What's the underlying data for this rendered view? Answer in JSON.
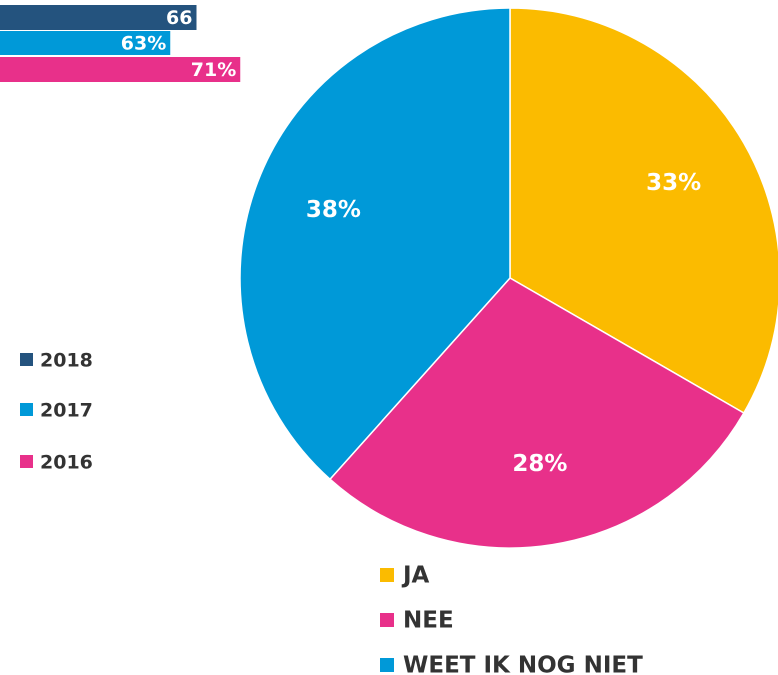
{
  "chart_data": [
    {
      "type": "bar",
      "orientation": "horizontal",
      "series": [
        {
          "name": "2018",
          "color": "#24537e",
          "values": [
            66
          ],
          "value_labels": [
            "66"
          ]
        },
        {
          "name": "2017",
          "color": "#0099d8",
          "values": [
            63
          ],
          "value_labels": [
            "63%"
          ]
        },
        {
          "name": "2016",
          "color": "#e8308a",
          "values": [
            71
          ],
          "value_labels": [
            "71%"
          ]
        }
      ]
    },
    {
      "type": "pie",
      "categories": [
        "JA",
        "NEE",
        "WEET IK NOG NIET"
      ],
      "values": [
        33,
        28,
        38
      ],
      "value_labels": [
        "33%",
        "28%",
        "38%"
      ],
      "colors": [
        "#fbbb00",
        "#e8308a",
        "#0099d8"
      ]
    }
  ]
}
